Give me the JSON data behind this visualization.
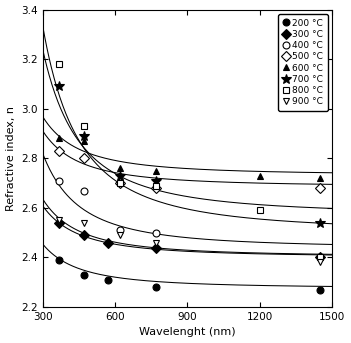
{
  "title": "",
  "xlabel": "Wavelenght (nm)",
  "ylabel": "Refractive index, n",
  "xlim": [
    300,
    1500
  ],
  "ylim": [
    2.2,
    3.4
  ],
  "xticks": [
    300,
    600,
    900,
    1200,
    1500
  ],
  "yticks": [
    2.2,
    2.4,
    2.6,
    2.8,
    3.0,
    3.2,
    3.4
  ],
  "series": [
    {
      "label": "200 °C",
      "marker": "o",
      "filled": true,
      "points": [
        [
          370,
          2.39
        ],
        [
          470,
          2.33
        ],
        [
          570,
          2.31
        ],
        [
          770,
          2.28
        ],
        [
          1450,
          2.27
        ]
      ],
      "fit_pts": [
        [
          300,
          2.44
        ],
        [
          400,
          2.4
        ],
        [
          600,
          2.33
        ],
        [
          900,
          2.29
        ],
        [
          1500,
          2.27
        ]
      ]
    },
    {
      "label": "300 °C",
      "marker": "D",
      "filled": true,
      "points": [
        [
          370,
          2.54
        ],
        [
          470,
          2.49
        ],
        [
          570,
          2.46
        ],
        [
          770,
          2.44
        ],
        [
          1450,
          2.4
        ]
      ],
      "fit_pts": [
        [
          300,
          2.6
        ],
        [
          500,
          2.5
        ],
        [
          800,
          2.44
        ],
        [
          1200,
          2.41
        ],
        [
          1500,
          2.39
        ]
      ]
    },
    {
      "label": "400 °C",
      "marker": "o",
      "filled": false,
      "points": [
        [
          370,
          2.71
        ],
        [
          470,
          2.67
        ],
        [
          620,
          2.51
        ],
        [
          770,
          2.5
        ],
        [
          1450,
          2.4
        ]
      ],
      "fit_pts": [
        [
          300,
          2.79
        ],
        [
          500,
          2.66
        ],
        [
          800,
          2.52
        ],
        [
          1200,
          2.43
        ],
        [
          1500,
          2.4
        ]
      ]
    },
    {
      "label": "500 °C",
      "marker": "D",
      "filled": false,
      "points": [
        [
          370,
          2.83
        ],
        [
          470,
          2.8
        ],
        [
          620,
          2.7
        ],
        [
          770,
          2.68
        ],
        [
          1450,
          2.68
        ]
      ],
      "fit_pts": [
        [
          300,
          2.9
        ],
        [
          500,
          2.8
        ],
        [
          800,
          2.72
        ],
        [
          1200,
          2.69
        ],
        [
          1500,
          2.68
        ]
      ]
    },
    {
      "label": "600 °C",
      "marker": "^",
      "filled": true,
      "points": [
        [
          370,
          2.88
        ],
        [
          470,
          2.87
        ],
        [
          620,
          2.76
        ],
        [
          770,
          2.75
        ],
        [
          1200,
          2.73
        ],
        [
          1450,
          2.72
        ]
      ],
      "fit_pts": [
        [
          300,
          2.95
        ],
        [
          500,
          2.87
        ],
        [
          800,
          2.78
        ],
        [
          1200,
          2.73
        ],
        [
          1500,
          2.71
        ]
      ]
    },
    {
      "label": "700 °C",
      "marker": "*",
      "filled": true,
      "points": [
        [
          370,
          3.09
        ],
        [
          470,
          2.89
        ],
        [
          620,
          2.73
        ],
        [
          770,
          2.71
        ],
        [
          1450,
          2.54
        ]
      ],
      "fit_pts": [
        [
          300,
          3.2
        ],
        [
          500,
          2.93
        ],
        [
          800,
          2.7
        ],
        [
          1200,
          2.57
        ],
        [
          1500,
          2.53
        ]
      ]
    },
    {
      "label": "800 °C",
      "marker": "s",
      "filled": false,
      "points": [
        [
          370,
          3.18
        ],
        [
          470,
          2.93
        ],
        [
          620,
          2.7
        ],
        [
          770,
          2.69
        ],
        [
          1200,
          2.59
        ],
        [
          1450,
          2.4
        ]
      ],
      "fit_pts": [
        [
          300,
          3.28
        ],
        [
          500,
          2.95
        ],
        [
          800,
          2.7
        ],
        [
          1200,
          2.52
        ],
        [
          1500,
          2.4
        ]
      ]
    },
    {
      "label": "900 °C",
      "marker": "v",
      "filled": false,
      "points": [
        [
          370,
          2.55
        ],
        [
          470,
          2.54
        ],
        [
          620,
          2.49
        ],
        [
          770,
          2.46
        ],
        [
          1450,
          2.38
        ]
      ],
      "fit_pts": [
        [
          300,
          2.62
        ],
        [
          500,
          2.53
        ],
        [
          800,
          2.46
        ],
        [
          1200,
          2.4
        ],
        [
          1500,
          2.38
        ]
      ]
    }
  ]
}
